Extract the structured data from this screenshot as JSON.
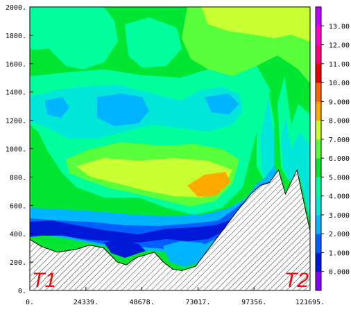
{
  "chart_data": {
    "type": "heatmap",
    "title": "",
    "xlabel": "",
    "ylabel": "",
    "xlim": [
      0,
      121695
    ],
    "ylim": [
      0,
      2000
    ],
    "x_ticks": [
      "0.",
      "24339.",
      "48678.",
      "73017.",
      "97356.",
      "121695."
    ],
    "y_ticks": [
      "0.",
      "200.",
      "400.",
      "600.",
      "800.",
      "1000.",
      "1200.",
      "1400.",
      "1600.",
      "1800.",
      "2000."
    ],
    "colorbar": {
      "levels": [
        0,
        1,
        2,
        3,
        4,
        5,
        6,
        7,
        8,
        9,
        10,
        11,
        12,
        13
      ],
      "labels": [
        "0.000",
        "1.000",
        "2.000",
        "3.000",
        "4.000",
        "5.000",
        "6.000",
        "7.000",
        "8.000",
        "9.000",
        "10.00",
        "11.00",
        "12.00",
        "13.00"
      ],
      "colors": [
        "#8a00ff",
        "#0018d8",
        "#0060ff",
        "#00b4ff",
        "#00e6d8",
        "#00ff9c",
        "#00e632",
        "#5aff3c",
        "#c8ff32",
        "#ffaa00",
        "#ff6400",
        "#e60000",
        "#ff0078",
        "#ff00c8",
        "#c000ff"
      ]
    },
    "terrain_profile": [
      [
        0,
        360
      ],
      [
        5000,
        310
      ],
      [
        12000,
        270
      ],
      [
        20000,
        290
      ],
      [
        26000,
        320
      ],
      [
        32000,
        300
      ],
      [
        38000,
        200
      ],
      [
        42000,
        180
      ],
      [
        46000,
        230
      ],
      [
        50000,
        250
      ],
      [
        54000,
        270
      ],
      [
        58000,
        200
      ],
      [
        62000,
        150
      ],
      [
        66000,
        140
      ],
      [
        72000,
        170
      ],
      [
        78000,
        300
      ],
      [
        84000,
        430
      ],
      [
        90000,
        560
      ],
      [
        96000,
        680
      ],
      [
        100000,
        740
      ],
      [
        104000,
        760
      ],
      [
        108000,
        850
      ],
      [
        111000,
        680
      ],
      [
        116000,
        850
      ],
      [
        121695,
        420
      ]
    ],
    "annotations": [
      "T1",
      "T2"
    ]
  }
}
